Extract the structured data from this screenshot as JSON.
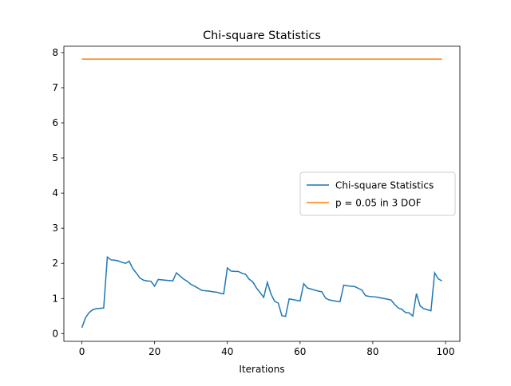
{
  "chart_data": {
    "type": "line",
    "title": "Chi-square Statistics",
    "xlabel": "Iterations",
    "series": [
      {
        "name": "Chi-square Statistics",
        "color": "#1f77b4",
        "x": [
          0,
          1,
          2,
          3,
          4,
          5,
          6,
          7,
          8,
          9,
          10,
          11,
          12,
          13,
          14,
          15,
          16,
          17,
          18,
          19,
          20,
          21,
          22,
          23,
          24,
          25,
          26,
          27,
          28,
          29,
          30,
          31,
          32,
          33,
          34,
          35,
          36,
          37,
          38,
          39,
          40,
          41,
          42,
          43,
          44,
          45,
          46,
          47,
          48,
          49,
          50,
          51,
          52,
          53,
          54,
          55,
          56,
          57,
          58,
          59,
          60,
          61,
          62,
          63,
          64,
          65,
          66,
          67,
          68,
          69,
          70,
          71,
          72,
          73,
          74,
          75,
          76,
          77,
          78,
          79,
          80,
          81,
          82,
          83,
          84,
          85,
          86,
          87,
          88,
          89,
          90,
          91,
          92,
          93,
          94,
          95,
          96,
          97,
          98,
          99
        ],
        "values": [
          0.17,
          0.45,
          0.6,
          0.68,
          0.71,
          0.72,
          0.73,
          2.18,
          2.1,
          2.09,
          2.07,
          2.03,
          2.0,
          2.06,
          1.85,
          1.72,
          1.58,
          1.52,
          1.5,
          1.49,
          1.35,
          1.54,
          1.53,
          1.52,
          1.51,
          1.5,
          1.73,
          1.64,
          1.55,
          1.49,
          1.4,
          1.35,
          1.29,
          1.23,
          1.22,
          1.21,
          1.19,
          1.18,
          1.15,
          1.13,
          1.87,
          1.78,
          1.77,
          1.77,
          1.72,
          1.69,
          1.55,
          1.47,
          1.3,
          1.17,
          1.03,
          1.46,
          1.13,
          0.92,
          0.87,
          0.51,
          0.49,
          0.99,
          0.97,
          0.95,
          0.93,
          1.42,
          1.3,
          1.27,
          1.24,
          1.21,
          1.19,
          1.01,
          0.96,
          0.94,
          0.92,
          0.91,
          1.38,
          1.36,
          1.35,
          1.34,
          1.29,
          1.24,
          1.08,
          1.06,
          1.05,
          1.04,
          1.02,
          1.0,
          0.98,
          0.96,
          0.83,
          0.73,
          0.69,
          0.6,
          0.59,
          0.5,
          1.14,
          0.79,
          0.71,
          0.68,
          0.65,
          1.73,
          1.56,
          1.5
        ]
      },
      {
        "name": "p = 0.05 in 3 DOF",
        "color": "#ff7f0e",
        "x": [
          0,
          99
        ],
        "values": [
          7.815,
          7.815
        ]
      }
    ],
    "xlim": [
      -4.95,
      103.95
    ],
    "ylim": [
      -0.22,
      8.18
    ],
    "xticks": [
      0,
      20,
      40,
      60,
      80,
      100
    ],
    "yticks": [
      0,
      1,
      2,
      3,
      4,
      5,
      6,
      7,
      8
    ],
    "legend": "center right"
  }
}
